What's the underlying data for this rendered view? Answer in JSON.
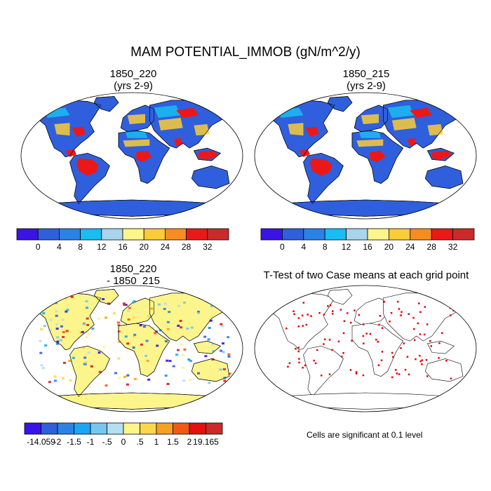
{
  "figure": {
    "title": "MAM POTENTIAL_IMMOB (gN/m^2/y)",
    "note": "Cells are significant at 0.1 level"
  },
  "panels": {
    "top_left": {
      "title_line1": "1850_220",
      "title_line2": "(yrs 2-9)"
    },
    "top_right": {
      "title_line1": "1850_215",
      "title_line2": "(yrs 2-9)"
    },
    "bottom_left": {
      "title_line1": "1850_220",
      "title_line2": "- 1850_215"
    },
    "bottom_right": {
      "title_line1": "T-Test of two Case means at each grid point"
    }
  },
  "colorbars": {
    "absolute": {
      "colors": [
        "#3a14e6",
        "#2f5fdc",
        "#2b82e6",
        "#18bdf2",
        "#a8d4ec",
        "#fcf58c",
        "#fccc36",
        "#f88c20",
        "#ec1818",
        "#cc2a2a"
      ],
      "labels": [
        "0",
        "4",
        "8",
        "12",
        "16",
        "20",
        "24",
        "28",
        "32"
      ]
    },
    "difference": {
      "colors": [
        "#3a14e6",
        "#2f5fdc",
        "#2b82e6",
        "#18a6f2",
        "#76c6ee",
        "#b4def2",
        "#fcf58c",
        "#fcd848",
        "#f8a020",
        "#f05a14",
        "#e61010",
        "#cc2a2a"
      ],
      "labels": [
        "-14.059",
        "-2",
        "-1.5",
        "-1",
        "-.5",
        "0",
        ".5",
        "1",
        "1.5",
        "2",
        "19.165"
      ]
    }
  },
  "colors": {
    "ocean": "#ffffff",
    "low_fill": "#2f5fdc",
    "diff_base": "#fcf58c",
    "significant": "#e60000",
    "coast": "#000000"
  }
}
